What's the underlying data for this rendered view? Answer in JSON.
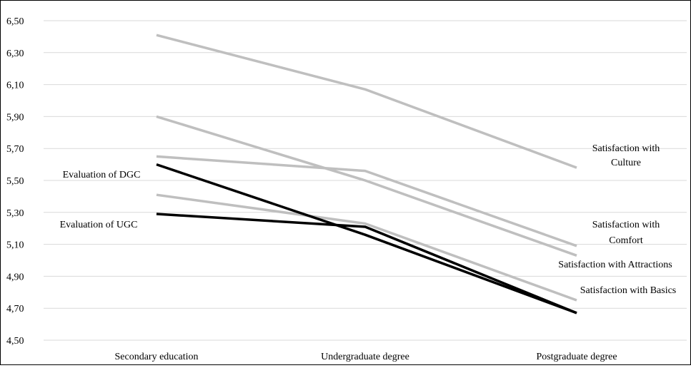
{
  "chart_data": {
    "type": "line",
    "categories": [
      "Secondary education",
      "Undergraduate degree",
      "Postgraduate degree"
    ],
    "y_ticks": [
      "6,50",
      "6,30",
      "6,10",
      "5,90",
      "5,70",
      "5,50",
      "5,30",
      "5,10",
      "4,90",
      "4,70",
      "4,50"
    ],
    "ylim": [
      4.5,
      6.5
    ],
    "grid": true,
    "legend": "none",
    "series": [
      {
        "name": "Satisfaction with Culture",
        "values": [
          6.41,
          6.07,
          5.58
        ],
        "color": "#bfbfbf"
      },
      {
        "name": "Satisfaction with Comfort",
        "values": [
          5.65,
          5.56,
          5.09
        ],
        "color": "#bfbfbf"
      },
      {
        "name": "Satisfaction with Attractions",
        "values": [
          5.9,
          5.5,
          5.03
        ],
        "color": "#bfbfbf"
      },
      {
        "name": "Satisfaction with Basics",
        "values": [
          5.41,
          5.23,
          4.75
        ],
        "color": "#bfbfbf"
      },
      {
        "name": "Evaluation of DGC",
        "values": [
          5.6,
          5.16,
          4.67
        ],
        "color": "#000000"
      },
      {
        "name": "Evaluation of UGC",
        "values": [
          5.29,
          5.21,
          4.67
        ],
        "color": "#000000"
      }
    ],
    "annotations": {
      "culture": [
        "Satisfaction with",
        "Culture"
      ],
      "comfort": [
        "Satisfaction with",
        "Comfort"
      ],
      "attractions": [
        "Satisfaction with Attractions"
      ],
      "basics": [
        "Satisfaction with Basics"
      ],
      "dgc": [
        "Evaluation of DGC"
      ],
      "ugc": [
        "Evaluation of UGC"
      ]
    }
  }
}
